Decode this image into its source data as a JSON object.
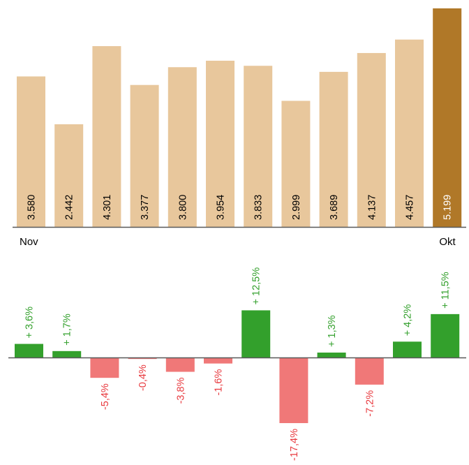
{
  "chart_data": [
    {
      "type": "bar",
      "x_start_label": "Nov",
      "x_end_label": "Okt",
      "values": [
        3580,
        2442,
        4301,
        3377,
        3800,
        3954,
        3833,
        2999,
        3689,
        4137,
        4457,
        5199
      ],
      "value_labels": [
        "3.580",
        "2.442",
        "4.301",
        "3.377",
        "3.800",
        "3.954",
        "3.833",
        "2.999",
        "3.689",
        "4.137",
        "4.457",
        "5.199"
      ],
      "highlight_index": 11,
      "colors": {
        "bar": "#e8c79c",
        "highlight": "#b07828",
        "axis": "#595959",
        "label": "#000000",
        "highlight_label": "#ffffff"
      }
    },
    {
      "type": "bar",
      "values": [
        3.6,
        1.7,
        -5.4,
        -0.4,
        -3.8,
        -1.6,
        12.5,
        -17.4,
        1.3,
        -7.2,
        4.2,
        11.5
      ],
      "value_labels": [
        "+ 3,6%",
        "+ 1,7%",
        "-5,4%",
        "-0,4%",
        "-3,8%",
        "-1,6%",
        "+ 12,5%",
        "-17,4%",
        "+ 1,3%",
        "-7,2%",
        "+ 4,2%",
        "+ 11,5%"
      ],
      "colors": {
        "positive": "#33a02c",
        "negative": "#f07878",
        "axis": "#595959"
      }
    }
  ]
}
